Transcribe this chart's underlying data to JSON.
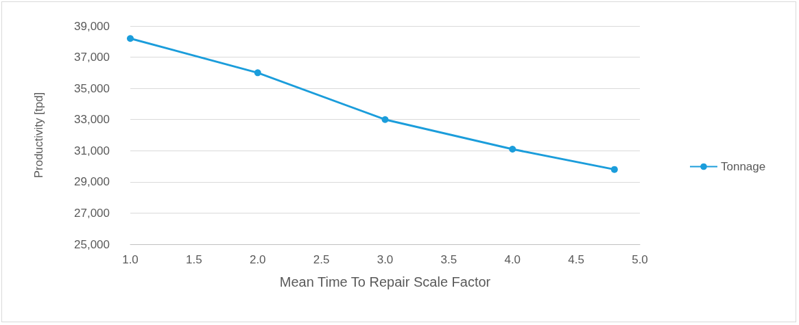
{
  "chart_data": {
    "type": "line",
    "xlabel": "Mean Time To Repair Scale Factor",
    "ylabel": "Productivity [tpd]",
    "x": [
      1.0,
      2.0,
      3.0,
      4.0,
      4.8
    ],
    "series": [
      {
        "name": "Tonnage",
        "color": "#1b9ddb",
        "values": [
          38200,
          36000,
          33000,
          31100,
          29800
        ]
      }
    ],
    "xlim": [
      1.0,
      5.0
    ],
    "xticks": [
      {
        "value": 1,
        "label": "1.0"
      },
      {
        "value": 1.5,
        "label": "1.5"
      },
      {
        "value": 2,
        "label": "2.0"
      },
      {
        "value": 2.5,
        "label": "2.5"
      },
      {
        "value": 3,
        "label": "3.0"
      },
      {
        "value": 3.5,
        "label": "3.5"
      },
      {
        "value": 4,
        "label": "4.0"
      },
      {
        "value": 4.5,
        "label": "4.5"
      },
      {
        "value": 5,
        "label": "5.0"
      }
    ],
    "ylim": [
      25000,
      39000
    ],
    "yticks": [
      {
        "value": 25000,
        "label": "25,000"
      },
      {
        "value": 27000,
        "label": "27,000"
      },
      {
        "value": 29000,
        "label": "29,000"
      },
      {
        "value": 31000,
        "label": "31,000"
      },
      {
        "value": 33000,
        "label": "33,000"
      },
      {
        "value": 35000,
        "label": "35,000"
      },
      {
        "value": 37000,
        "label": "37,000"
      },
      {
        "value": 39000,
        "label": "39,000"
      }
    ],
    "grid": "y",
    "legend": "right",
    "marker": "circle",
    "line_style": "solid"
  }
}
